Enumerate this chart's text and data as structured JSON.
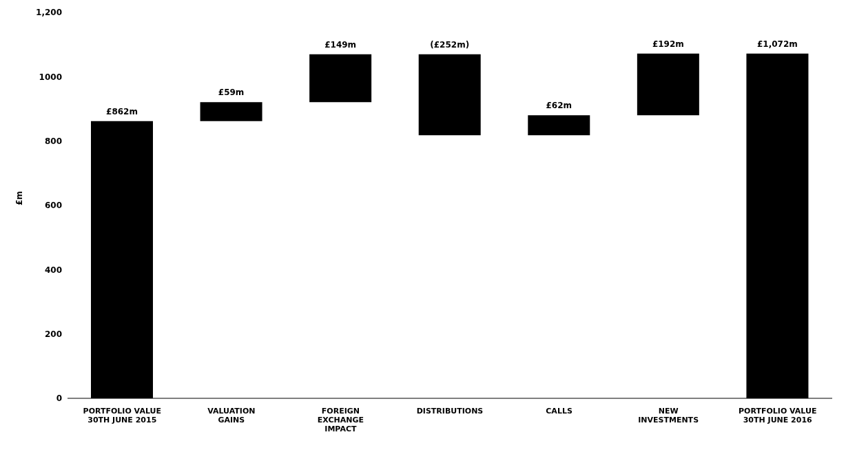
{
  "chart_data": {
    "type": "bar",
    "ylabel": "£m",
    "categories": [
      "PORTFOLIO VALUE\n30TH JUNE 2015",
      "VALUATION\nGAINS",
      "FOREIGN\nEXCHANGE\nIMPACT",
      "DISTRIBUTIONS",
      "CALLS",
      "NEW\nINVESTMENTS",
      "PORTFOLIO VALUE\n30TH JUNE 2016"
    ],
    "values": [
      862,
      59,
      149,
      -252,
      62,
      192,
      1072
    ],
    "base": [
      0,
      862,
      921,
      1070,
      818,
      880,
      0
    ],
    "value_labels": [
      "£862m",
      "£59m",
      "£149m",
      "(£252m)",
      "£62m",
      "£192m",
      "£1,072m"
    ],
    "color": "#000000",
    "ylim": [
      0,
      1200
    ],
    "yticks": [
      0,
      200,
      400,
      600,
      800,
      1000,
      {
        "value": 1200,
        "label": "1,200"
      }
    ]
  }
}
